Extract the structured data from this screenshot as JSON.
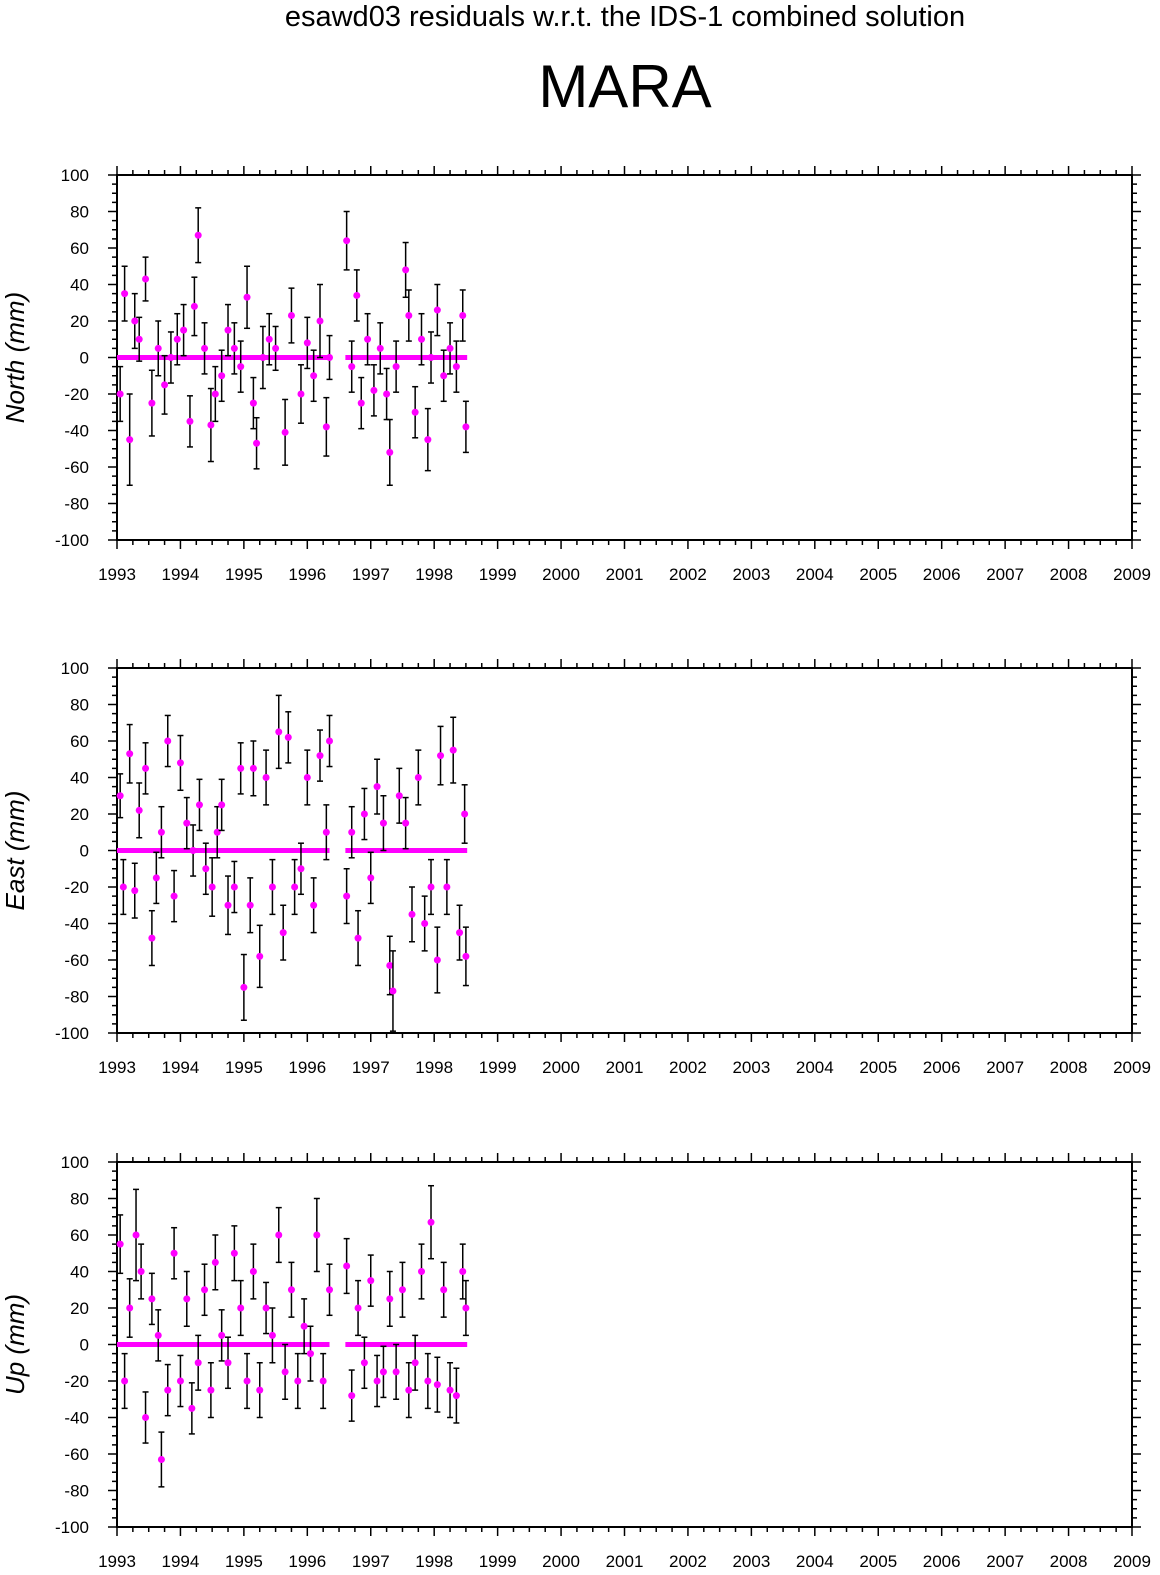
{
  "title": "esawd03 residuals w.r.t. the IDS-1 combined solution",
  "station": "MARA",
  "colors": {
    "marker": "#ff00ff",
    "errorbar": "#000000",
    "frame": "#000000"
  },
  "chart_data": [
    {
      "type": "scatter",
      "ylabel": "North (mm)",
      "xlim": [
        1993,
        2009
      ],
      "ylim": [
        -100,
        100
      ],
      "xticks": [
        "1993",
        "1994",
        "1995",
        "1996",
        "1997",
        "1998",
        "1999",
        "2000",
        "2001",
        "2002",
        "2003",
        "2004",
        "2005",
        "2006",
        "2007",
        "2008",
        "2009"
      ],
      "yticks": [
        "100",
        "80",
        "60",
        "40",
        "20",
        "0",
        "-20",
        "-40",
        "-60",
        "-80",
        "-100"
      ],
      "series": [
        {
          "x": [
            1993.05,
            1993.12,
            1993.2,
            1993.28,
            1993.35,
            1993.45,
            1993.55,
            1993.65,
            1993.75,
            1993.85,
            1993.95,
            1994.05,
            1994.15,
            1994.22,
            1994.28,
            1994.38,
            1994.48,
            1994.55,
            1994.65,
            1994.75,
            1994.85,
            1994.95,
            1995.05,
            1995.15,
            1995.2,
            1995.3,
            1995.4,
            1995.5,
            1995.65,
            1995.75,
            1995.9,
            1996.0,
            1996.1,
            1996.2,
            1996.3,
            1996.35,
            1996.62,
            1996.7,
            1996.78,
            1996.85,
            1996.95,
            1997.05,
            1997.15,
            1997.25,
            1997.3,
            1997.4,
            1997.55,
            1997.6,
            1997.7,
            1997.8,
            1997.9,
            1997.95,
            1998.05,
            1998.15,
            1998.25,
            1998.35,
            1998.45,
            1998.5
          ],
          "y": [
            -20,
            35,
            -45,
            20,
            10,
            43,
            -25,
            5,
            -15,
            0,
            10,
            15,
            -35,
            28,
            67,
            5,
            -37,
            -20,
            -10,
            15,
            5,
            -5,
            33,
            -25,
            -47,
            0,
            10,
            5,
            -41,
            23,
            -20,
            8,
            -10,
            20,
            -38,
            0,
            64,
            -5,
            34,
            -25,
            10,
            -18,
            5,
            -20,
            -52,
            -5,
            48,
            23,
            -30,
            10,
            -45,
            0,
            26,
            -10,
            5,
            -5,
            23,
            -38
          ],
          "err": [
            15,
            15,
            25,
            15,
            12,
            12,
            18,
            15,
            16,
            14,
            14,
            14,
            14,
            16,
            15,
            14,
            20,
            15,
            14,
            14,
            14,
            14,
            17,
            14,
            14,
            17,
            14,
            12,
            18,
            15,
            16,
            14,
            14,
            20,
            16,
            12,
            16,
            14,
            14,
            14,
            14,
            14,
            14,
            14,
            18,
            14,
            15,
            14,
            14,
            14,
            17,
            14,
            14,
            14,
            14,
            14,
            14,
            14
          ]
        }
      ]
    },
    {
      "type": "scatter",
      "ylabel": "East (mm)",
      "xlim": [
        1993,
        2009
      ],
      "ylim": [
        -100,
        100
      ],
      "xticks": [
        "1993",
        "1994",
        "1995",
        "1996",
        "1997",
        "1998",
        "1999",
        "2000",
        "2001",
        "2002",
        "2003",
        "2004",
        "2005",
        "2006",
        "2007",
        "2008",
        "2009"
      ],
      "yticks": [
        "100",
        "80",
        "60",
        "40",
        "20",
        "0",
        "-20",
        "-40",
        "-60",
        "-80",
        "-100"
      ],
      "series": [
        {
          "x": [
            1993.05,
            1993.1,
            1993.2,
            1993.28,
            1993.35,
            1993.45,
            1993.55,
            1993.62,
            1993.7,
            1993.8,
            1993.9,
            1994.0,
            1994.1,
            1994.2,
            1994.3,
            1994.4,
            1994.5,
            1994.58,
            1994.65,
            1994.75,
            1994.85,
            1994.95,
            1995.0,
            1995.1,
            1995.15,
            1995.25,
            1995.35,
            1995.45,
            1995.55,
            1995.62,
            1995.7,
            1995.8,
            1995.9,
            1996.0,
            1996.1,
            1996.2,
            1996.3,
            1996.35,
            1996.62,
            1996.7,
            1996.8,
            1996.9,
            1997.0,
            1997.1,
            1997.2,
            1997.3,
            1997.35,
            1997.45,
            1997.55,
            1997.65,
            1997.75,
            1997.85,
            1997.95,
            1998.05,
            1998.1,
            1998.2,
            1998.3,
            1998.4,
            1998.48,
            1998.5
          ],
          "y": [
            30,
            -20,
            53,
            -22,
            22,
            45,
            -48,
            -15,
            10,
            60,
            -25,
            48,
            15,
            0,
            25,
            -10,
            -20,
            10,
            25,
            -30,
            -20,
            45,
            -75,
            -30,
            45,
            -58,
            40,
            -20,
            65,
            -45,
            62,
            -20,
            -10,
            40,
            -30,
            52,
            10,
            60,
            -25,
            10,
            -48,
            20,
            -15,
            35,
            15,
            -63,
            -77,
            30,
            15,
            -35,
            40,
            -40,
            -20,
            -60,
            52,
            -20,
            55,
            -45,
            20,
            -58
          ],
          "err": [
            12,
            15,
            16,
            15,
            15,
            14,
            15,
            14,
            14,
            14,
            14,
            15,
            14,
            14,
            14,
            14,
            16,
            14,
            14,
            16,
            14,
            14,
            18,
            15,
            15,
            17,
            15,
            15,
            20,
            15,
            14,
            15,
            14,
            15,
            15,
            14,
            15,
            14,
            15,
            14,
            15,
            14,
            14,
            15,
            15,
            16,
            22,
            15,
            14,
            15,
            15,
            15,
            15,
            18,
            16,
            15,
            18,
            15,
            16,
            16
          ]
        }
      ]
    },
    {
      "type": "scatter",
      "ylabel": "Up (mm)",
      "xlim": [
        1993,
        2009
      ],
      "ylim": [
        -100,
        100
      ],
      "xticks": [
        "1993",
        "1994",
        "1995",
        "1996",
        "1997",
        "1998",
        "1999",
        "2000",
        "2001",
        "2002",
        "2003",
        "2004",
        "2005",
        "2006",
        "2007",
        "2008",
        "2009"
      ],
      "yticks": [
        "100",
        "80",
        "60",
        "40",
        "20",
        "0",
        "-20",
        "-40",
        "-60",
        "-80",
        "-100"
      ],
      "series": [
        {
          "x": [
            1993.05,
            1993.12,
            1993.2,
            1993.3,
            1993.38,
            1993.45,
            1993.55,
            1993.65,
            1993.7,
            1993.8,
            1993.9,
            1994.0,
            1994.1,
            1994.18,
            1994.28,
            1994.38,
            1994.48,
            1994.55,
            1994.65,
            1994.75,
            1994.85,
            1994.95,
            1995.05,
            1995.15,
            1995.25,
            1995.35,
            1995.45,
            1995.55,
            1995.65,
            1995.75,
            1995.85,
            1995.95,
            1996.05,
            1996.15,
            1996.25,
            1996.35,
            1996.62,
            1996.7,
            1996.8,
            1996.9,
            1997.0,
            1997.1,
            1997.2,
            1997.3,
            1997.4,
            1997.5,
            1997.6,
            1997.7,
            1997.8,
            1997.9,
            1997.95,
            1998.05,
            1998.15,
            1998.25,
            1998.35,
            1998.45,
            1998.5
          ],
          "y": [
            55,
            -20,
            20,
            60,
            40,
            -40,
            25,
            5,
            -63,
            -25,
            50,
            -20,
            25,
            -35,
            -10,
            30,
            -25,
            45,
            5,
            -10,
            50,
            20,
            -20,
            40,
            -25,
            20,
            5,
            60,
            -15,
            30,
            -20,
            10,
            -5,
            60,
            -20,
            30,
            43,
            -28,
            20,
            -10,
            35,
            -20,
            -15,
            25,
            -15,
            30,
            -25,
            -10,
            40,
            -20,
            67,
            -22,
            30,
            -25,
            -28,
            40,
            20
          ],
          "err": [
            16,
            15,
            16,
            25,
            15,
            14,
            14,
            14,
            15,
            14,
            14,
            14,
            15,
            14,
            15,
            14,
            15,
            15,
            14,
            14,
            15,
            15,
            15,
            15,
            15,
            14,
            15,
            15,
            15,
            15,
            15,
            15,
            15,
            20,
            15,
            14,
            15,
            14,
            15,
            14,
            14,
            14,
            14,
            15,
            15,
            15,
            15,
            15,
            15,
            15,
            20,
            15,
            15,
            15,
            15,
            15,
            15
          ]
        }
      ]
    }
  ]
}
